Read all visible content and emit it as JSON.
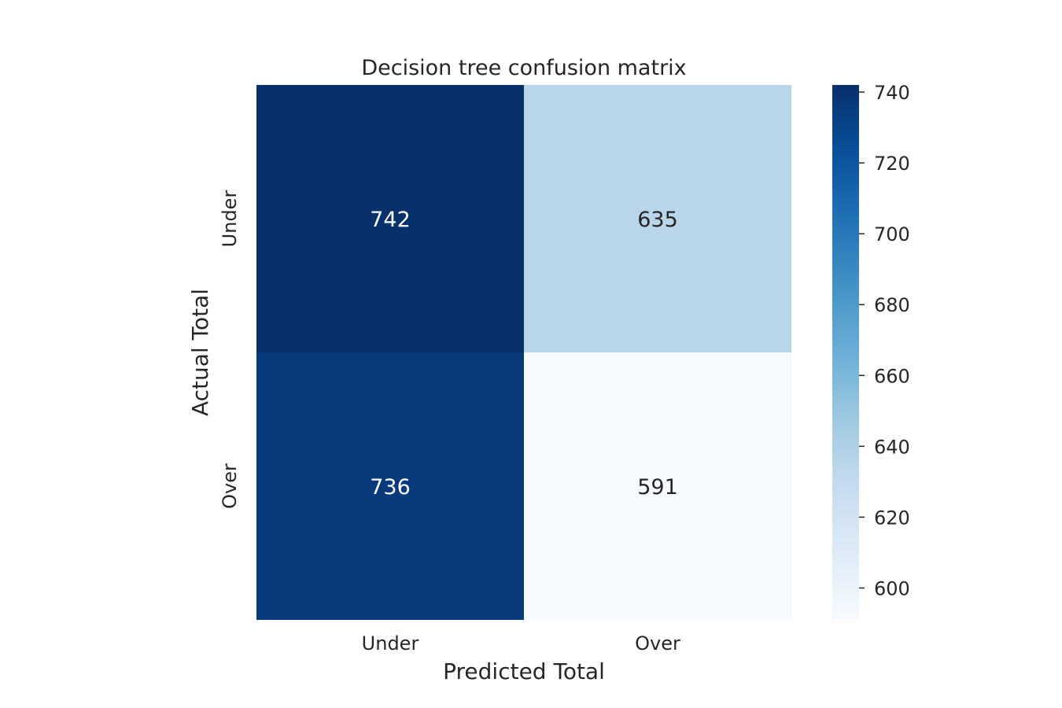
{
  "chart_data": {
    "type": "heatmap",
    "title": "Decision tree confusion matrix",
    "xlabel": "Predicted Total",
    "ylabel": "Actual Total",
    "x_categories": [
      "Under",
      "Over"
    ],
    "y_categories": [
      "Under",
      "Over"
    ],
    "values": [
      [
        742,
        635
      ],
      [
        736,
        591
      ]
    ],
    "colormap": "Blues",
    "color_min": 591,
    "color_max": 742,
    "colorbar_ticks": [
      600,
      620,
      640,
      660,
      680,
      700,
      720,
      740
    ],
    "colorbar_placement": "right",
    "grid": false
  }
}
